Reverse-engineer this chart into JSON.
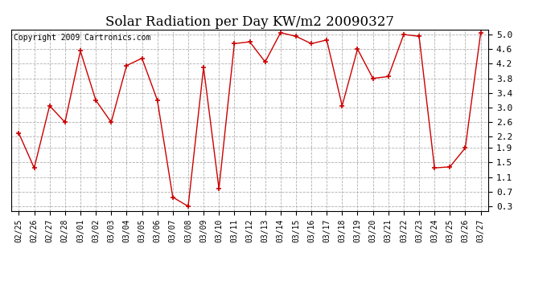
{
  "title": "Solar Radiation per Day KW/m2 20090327",
  "copyright": "Copyright 2009 Cartronics.com",
  "dates": [
    "02/25",
    "02/26",
    "02/27",
    "02/28",
    "03/01",
    "03/02",
    "03/03",
    "03/04",
    "03/05",
    "03/06",
    "03/07",
    "03/08",
    "03/09",
    "03/10",
    "03/11",
    "03/12",
    "03/13",
    "03/14",
    "03/15",
    "03/16",
    "03/17",
    "03/18",
    "03/19",
    "03/20",
    "03/21",
    "03/22",
    "03/23",
    "03/24",
    "03/25",
    "03/26",
    "03/27"
  ],
  "values": [
    2.3,
    1.35,
    3.05,
    2.6,
    4.55,
    3.2,
    2.6,
    4.15,
    4.35,
    3.2,
    0.55,
    0.3,
    4.1,
    0.78,
    4.75,
    4.8,
    4.25,
    5.05,
    4.95,
    4.75,
    4.85,
    3.05,
    4.6,
    3.8,
    3.85,
    5.0,
    4.95,
    1.35,
    1.38,
    1.9,
    5.05
  ],
  "yticks": [
    0.3,
    0.7,
    1.1,
    1.5,
    1.9,
    2.2,
    2.6,
    3.0,
    3.4,
    3.8,
    4.2,
    4.6,
    5.0
  ],
  "ylim": [
    0.18,
    5.12
  ],
  "line_color": "#cc0000",
  "marker": "+",
  "marker_color": "#cc0000",
  "bg_color": "#ffffff",
  "grid_color": "#b0b0b0",
  "title_fontsize": 12,
  "copyright_fontsize": 7,
  "tick_fontsize": 7,
  "ytick_fontsize": 8
}
